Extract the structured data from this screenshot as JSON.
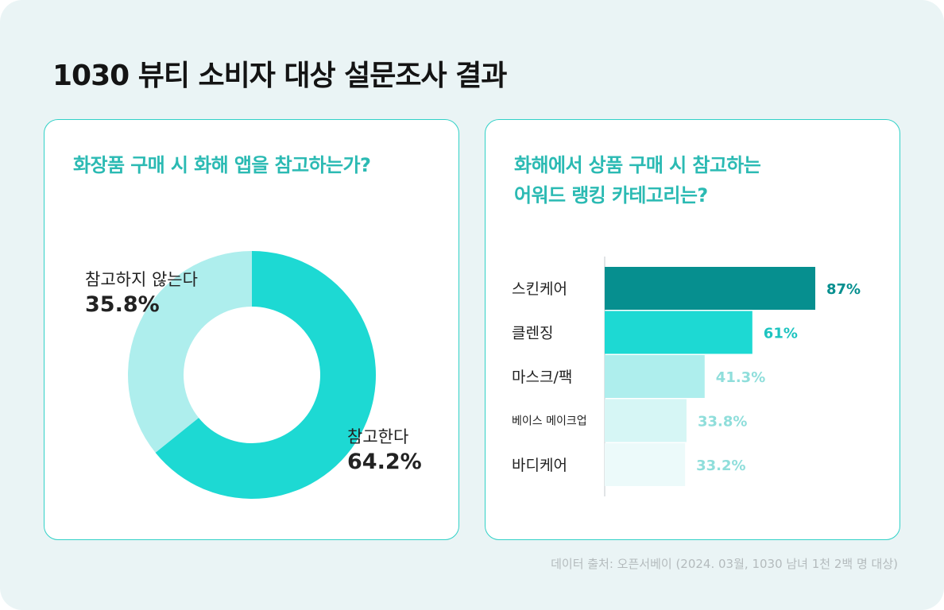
{
  "header": {
    "title": "1030 뷰티 소비자 대상 설문조사 결과"
  },
  "colors": {
    "background": "#eaf4f5",
    "card_border": "#31d1c7",
    "accent_text": "#2bbab3",
    "donut_refer": "#1dd9d3",
    "donut_not_refer": "#aeeeed",
    "axis": "#d7dcdd"
  },
  "chart_data": [
    {
      "type": "pie",
      "title": "화장품 구매 시 화해 앱을 참고하는가?",
      "slices": [
        {
          "label": "참고한다",
          "value": 64.2,
          "value_label": "64.2%",
          "color": "#1dd9d3"
        },
        {
          "label": "참고하지 않는다",
          "value": 35.8,
          "value_label": "35.8%",
          "color": "#aeeeed"
        }
      ],
      "donut": true
    },
    {
      "type": "bar",
      "orientation": "horizontal",
      "title_lines": [
        "화해에서 상품 구매 시 참고하는",
        "어워드 랭킹 카테고리는?"
      ],
      "categories": [
        "스킨케어",
        "클렌징",
        "마스크/팩",
        "베이스 메이크업",
        "바디케어"
      ],
      "values": [
        87,
        61,
        41.3,
        33.8,
        33.2
      ],
      "value_labels": [
        "87%",
        "61%",
        "41.3%",
        "33.8%",
        "33.2%"
      ],
      "bar_colors": [
        "#068f8f",
        "#1dd9d3",
        "#aeeeed",
        "#d6f6f5",
        "#ecfafa"
      ],
      "value_label_colors": [
        "#068f8f",
        "#1dc4c0",
        "#8fdedb",
        "#8fdedb",
        "#8fdedb"
      ]
    }
  ],
  "footnote": "데이터 출처: 오픈서베이 (2024. 03월, 1030 남녀 1천 2백 명 대상)"
}
